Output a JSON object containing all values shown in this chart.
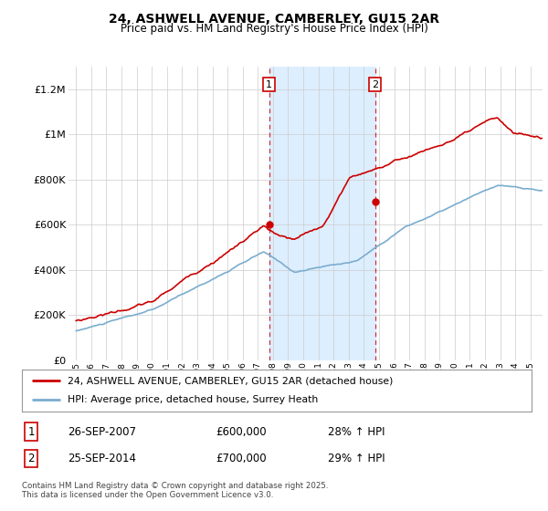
{
  "title": "24, ASHWELL AVENUE, CAMBERLEY, GU15 2AR",
  "subtitle": "Price paid vs. HM Land Registry's House Price Index (HPI)",
  "footer": "Contains HM Land Registry data © Crown copyright and database right 2025.\nThis data is licensed under the Open Government Licence v3.0.",
  "legend_line1": "24, ASHWELL AVENUE, CAMBERLEY, GU15 2AR (detached house)",
  "legend_line2": "HPI: Average price, detached house, Surrey Heath",
  "sale1_label": "1",
  "sale1_date": "26-SEP-2007",
  "sale1_price": "£600,000",
  "sale1_hpi": "28% ↑ HPI",
  "sale2_label": "2",
  "sale2_date": "25-SEP-2014",
  "sale2_price": "£700,000",
  "sale2_hpi": "29% ↑ HPI",
  "line_color_red": "#cc0000",
  "line_color_blue": "#7aadcf",
  "shade_color": "#ddeeff",
  "marker1_year": 2007.75,
  "marker2_year": 2014.75,
  "marker1_price": 600000,
  "marker2_price": 700000,
  "ylim_max": 1300000,
  "xlim_min": 1994.5,
  "xlim_max": 2025.8,
  "background_color": "#ffffff",
  "grid_color": "#cccccc",
  "dashed_color": "#cc3333"
}
